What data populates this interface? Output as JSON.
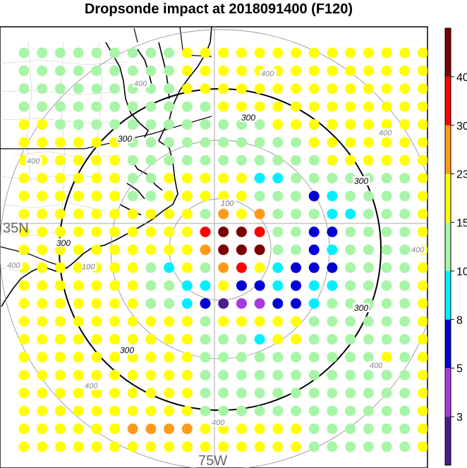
{
  "title": "Dropsonde impact at 2018091400 (F120)",
  "map_labels": {
    "lat_label": "35N",
    "lon_label": "75W"
  },
  "rings": [
    {
      "value": 100,
      "label": "100"
    },
    {
      "value": 200,
      "label": ""
    },
    {
      "value": 300,
      "label": "300"
    },
    {
      "value": 400,
      "label": "400"
    }
  ],
  "colorbar": {
    "ticks": [
      "40",
      "30",
      "23",
      "15",
      "10",
      "8",
      "5",
      "3"
    ],
    "colors": [
      "#4b1c8c",
      "#a63ae0",
      "#0000d6",
      "#00f0ff",
      "#a8f5a8",
      "#ffff00",
      "#ff9a1a",
      "#ff0000",
      "#7a0000"
    ],
    "color_names": [
      "indigo",
      "purple",
      "blue",
      "cyan",
      "light-green",
      "yellow",
      "orange",
      "red",
      "dark-red"
    ]
  },
  "grid_legend": {
    "code_meaning": "g=light-green, y=yellow, c=cyan, b=blue, p=purple, i=indigo, o=orange, r=red, m=dark-red, .=no-dot"
  },
  "dot_grid": [
    "g.g.g.g.g.g.g.g.g.y.y.y.y.y.y.y.y.y.y.y.y.y.y",
    "g.g.g.g.g.g.g.g.g.y.y.y.y.y.y.y.y.y.y.y.y.y.y",
    "g.g.g.g.g.g.g.g.g.y.y.y.y.y.y.y.y.y.y.y.y.y.y",
    "g.g.g.g.g.g.g.g.g.g.g.y.y.y.y.y.y.y.y.y.y.y.y",
    "y.y.g.g.g.g.g.g.g.g.g.g.g.g.y.y.y.y.y.y.y.y.y",
    "y.y.y.y.y.y.g.g.g.g.g.g.g.g.g.g.y.y.y.y.y.y.y",
    "y.y.y.y.y.y.g.g.g.g.g.g.g.g.g.g.g.y.y.y.y.y.y",
    "y.y.y.y.y.y.g.g.y.y.y.y.y.c.c.g.g.g.g.g.g.g.y",
    "y.y.y.y.y.y.g.g.y.y.y.y.y.g.g.g.b.c.g.g.g.g.y",
    "y.y.y.y.y.y.y.y.y.y.g.o.y.o.g.g.g.c.c.g.g.g.y",
    "y.y.y.y.y.y.y.y.y.y.r.m.m.r.g.g.b.b.g.g.g.g.y",
    "y.y.y.y.y.y.y.y.y.y.o.m.m.m.g.g.b.c.g.g.g.g.y",
    "y.y.y.y.y.y.y.g.c.y.g.o.r.y.c.b.b.b.g.g.g.g.y",
    "y.y.y.y.y.y.y.g.g.c.c.y.b.b.c.b.c.c.g.g.g.g.y",
    "y.y.y.y.y.y.y.g.g.c.b.i.p.p.b.b.c.g.g.g.g.g.y",
    "y.y.y.y.y.y.y.y.y.y.g.y.y.y.y.y.g.g.g.g.g.g.y",
    "y.y.y.y.y.y.y.y.y.y.g.g.g.c.y.y.g.g.g.g.g.g.y",
    "y.y.y.y.y.y.y.y.y.y.g.g.g.g.g.g.g.g.g.g.y.g.y",
    "y.y.y.y.y.y.y.y.y.y.g.g.g.g.g.g.g.g.g.g.g.g.y",
    "y.y.y.y.y.y.y.y.y.y.g.g.g.g.g.g.g.g.g.g.g.g.y",
    "y.y.y.y.y.y.y.y.y.y.g.g.g.g.g.g.g.g.g.g.g.g.y",
    "y.y.y.y.y.y.o.o.o.o.y.y.y.y.y.y.g.g.g.g.g.g.y",
    "y.y.y.y.y.y.y.y.y.y.y.y.y.y.y.y.g.g.g.g.g.g.y"
  ]
}
